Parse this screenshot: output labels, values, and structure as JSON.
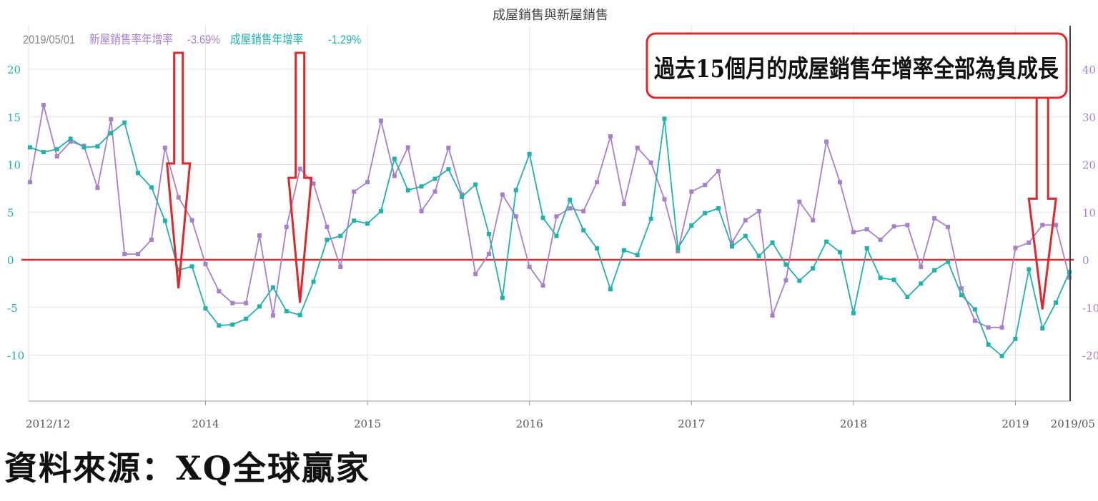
{
  "chart_data": {
    "type": "line",
    "title": "成屋銷售與新屋銷售",
    "legend": {
      "date": "2019/05/01",
      "series": [
        {
          "label": "新屋銷售率年增率",
          "value": "-3.69%",
          "color": "#a77fcc"
        },
        {
          "label": "成屋銷售年增率",
          "value": "-1.29%",
          "color": "#1fb2ad"
        }
      ],
      "placement": "top-left"
    },
    "x_tick_labels": [
      "2012/12",
      "2014",
      "2015",
      "2016",
      "2017",
      "2018",
      "2019",
      "2019/05"
    ],
    "x_ticks": [
      0,
      13,
      25,
      37,
      49,
      61,
      73,
      77
    ],
    "xlim": [
      0,
      77
    ],
    "left_axis": {
      "ticks": [
        "20",
        "15",
        "10",
        "5",
        "0",
        "-5",
        "-10"
      ],
      "values": [
        20,
        15,
        10,
        5,
        0,
        -5,
        -10
      ],
      "range": [
        -15,
        25
      ],
      "color": "#1fb2ad"
    },
    "right_axis": {
      "ticks": [
        "40",
        "30",
        "20",
        "10",
        "0",
        "-10",
        "-20"
      ],
      "values": [
        40,
        30,
        20,
        10,
        0,
        -10,
        -20
      ],
      "range": [
        -30,
        50
      ],
      "color": "#a77fcc"
    },
    "reference_line": {
      "value": 0,
      "color": "#e3262b"
    },
    "grid": true,
    "series": [
      {
        "name": "新屋銷售率年增率",
        "axis": "right",
        "color": "#a77fcc",
        "values": [
          16.3,
          32.5,
          21.7,
          24.8,
          23.9,
          15.1,
          29.5,
          1.2,
          1.2,
          4.2,
          23.5,
          13.1,
          8.3,
          -0.9,
          -6.6,
          -9.1,
          -9.1,
          5.1,
          -11.7,
          6.9,
          19.1,
          16.0,
          6.9,
          -1.5,
          14.3,
          16.3,
          29.2,
          17.6,
          23.6,
          10.2,
          14.3,
          23.5,
          13.7,
          -3.0,
          1.2,
          13.7,
          9.1,
          -1.5,
          -5.4,
          9.1,
          10.8,
          10.2,
          16.3,
          25.9,
          11.7,
          23.5,
          20.4,
          12.7,
          1.8,
          14.3,
          15.7,
          18.6,
          3.6,
          8.3,
          10.2,
          -11.7,
          -4.3,
          12.2,
          8.3,
          24.8,
          16.3,
          5.8,
          6.4,
          4.2,
          7.0,
          7.3,
          -1.5,
          8.7,
          6.9,
          -6.0,
          -12.8,
          -14.2,
          -14.2,
          2.5,
          3.6,
          7.3,
          7.3,
          -3.7
        ]
      },
      {
        "name": "成屋銷售年增率",
        "axis": "left",
        "color": "#1fb2ad",
        "values": [
          11.8,
          11.3,
          11.6,
          12.7,
          11.8,
          11.9,
          13.3,
          14.4,
          9.1,
          7.6,
          4.1,
          -1.1,
          -0.7,
          -5.1,
          -6.9,
          -6.8,
          -6.2,
          -4.9,
          -2.9,
          -5.4,
          -5.8,
          -2.3,
          2.1,
          2.5,
          4.1,
          3.8,
          5.1,
          10.6,
          7.3,
          7.7,
          8.5,
          9.5,
          6.6,
          7.9,
          2.7,
          -4.0,
          7.3,
          11.1,
          4.4,
          2.5,
          6.3,
          3.1,
          1.2,
          -3.1,
          1.0,
          0.5,
          4.3,
          14.8,
          1.2,
          3.6,
          4.9,
          5.4,
          1.4,
          2.5,
          0.4,
          1.8,
          -0.5,
          -2.2,
          -0.9,
          1.9,
          0.8,
          -5.6,
          1.2,
          -1.9,
          -2.1,
          -3.9,
          -2.5,
          -1.1,
          -0.2,
          -3.7,
          -5.2,
          -8.9,
          -10.1,
          -8.3,
          -1.0,
          -7.2,
          -4.5,
          -1.29
        ]
      }
    ]
  },
  "annotation": {
    "text": "過去15個月的成屋銷售年增率全部為負成長",
    "arrows": [
      {
        "at": 11,
        "tip_value": -3.0
      },
      {
        "at": 20,
        "tip_value": -4.5
      },
      {
        "at": 75,
        "tip_value": -5.2
      }
    ]
  },
  "source": "資料來源：XQ全球贏家"
}
